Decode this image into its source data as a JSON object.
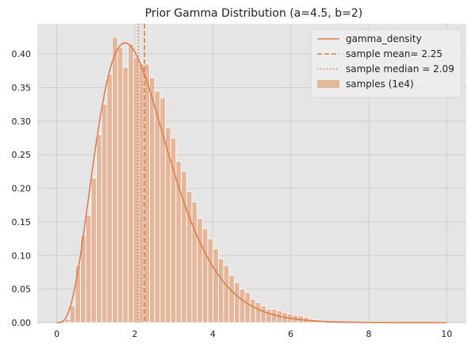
{
  "chart_data": {
    "type": "histogram+line",
    "title": "Prior Gamma Distribution (a=4.5, b=2)",
    "xlabel": "",
    "ylabel": "",
    "xlim": [
      -0.5,
      10.5
    ],
    "ylim": [
      0,
      0.445
    ],
    "xticks": [
      0,
      2,
      4,
      6,
      8,
      10
    ],
    "yticks": [
      0.0,
      0.05,
      0.1,
      0.15,
      0.2,
      0.25,
      0.3,
      0.35,
      0.4
    ],
    "grid": true,
    "legend_position": "upper-right",
    "gamma_density": {
      "shape": 4.5,
      "rate": 2,
      "x_range": [
        0,
        10
      ]
    },
    "sample_mean": 2.25,
    "sample_median": 2.09,
    "histogram": {
      "bin_width": 0.136,
      "start": 0.2,
      "heights": [
        0.005,
        0.025,
        0.085,
        0.13,
        0.16,
        0.215,
        0.28,
        0.325,
        0.37,
        0.425,
        0.41,
        0.38,
        0.415,
        0.395,
        0.385,
        0.385,
        0.365,
        0.345,
        0.335,
        0.29,
        0.275,
        0.24,
        0.225,
        0.195,
        0.18,
        0.155,
        0.14,
        0.125,
        0.11,
        0.095,
        0.085,
        0.07,
        0.06,
        0.05,
        0.045,
        0.035,
        0.03,
        0.025,
        0.02,
        0.02,
        0.018,
        0.015,
        0.013,
        0.011,
        0.01,
        0.008,
        0.005,
        0.004,
        0.003
      ]
    },
    "legend": [
      {
        "label": "gamma_density",
        "style": "line-solid"
      },
      {
        "label": "sample mean= 2.25",
        "style": "line-dashed"
      },
      {
        "label": "sample median =  2.09",
        "style": "line-dotted"
      },
      {
        "label": "samples (1e4)",
        "style": "patch"
      }
    ],
    "colors": {
      "line": "#e07c4c",
      "bars": "#e3b79b",
      "background": "#e5e5e5",
      "grid": "#cfcfcf"
    }
  }
}
